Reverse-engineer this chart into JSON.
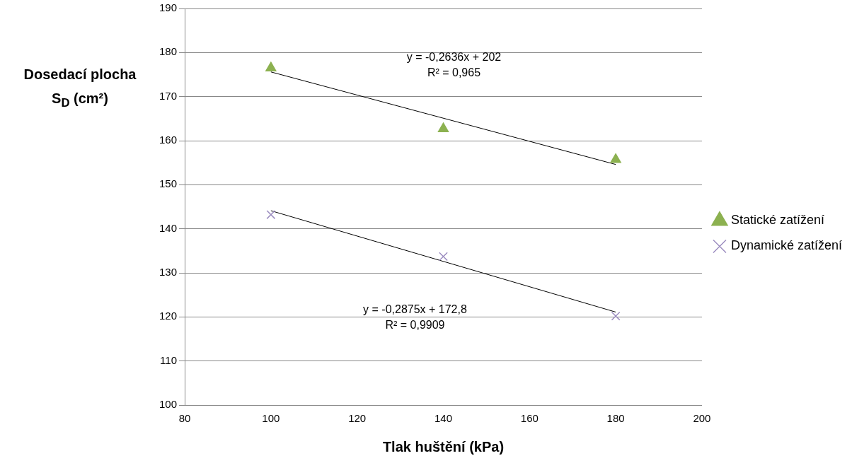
{
  "chart_data": {
    "type": "scatter",
    "xlabel": "Tlak huštění (kPa)",
    "ylabel": "Dosedací plocha\nS$_{D}$ (cm²)",
    "xlim": [
      80,
      200
    ],
    "xticks": [
      80,
      100,
      120,
      140,
      160,
      180,
      200
    ],
    "ylim": [
      100,
      190
    ],
    "yticks": [
      100,
      110,
      120,
      130,
      140,
      150,
      160,
      170,
      180,
      190
    ],
    "grid": "y",
    "legend": "right",
    "series": [
      {
        "name": "Statické zatížení",
        "color": "#8cb150",
        "marker": "triangle",
        "x": [
          100,
          140,
          180
        ],
        "values": [
          176.5,
          162.7,
          155.7
        ]
      },
      {
        "name": "Dynamické zatížení",
        "color": "#9c8dc0",
        "marker": "cross",
        "x": [
          100,
          140,
          180
        ],
        "values": [
          143.2,
          133.7,
          120.2
        ]
      },
      {
        "type": "line",
        "color": "#000000",
        "marker": "none",
        "x": [
          100,
          180
        ],
        "values": [
          175.6,
          154.6
        ]
      },
      {
        "type": "line",
        "color": "#000000",
        "marker": "none",
        "x": [
          100,
          180
        ],
        "values": [
          144.1,
          121.1
        ]
      }
    ],
    "annotations": [
      "y = -0,2636x + 202\nR² = 0,965",
      "y = -0,2875x + 172,8\nR² = 0,9909"
    ]
  }
}
